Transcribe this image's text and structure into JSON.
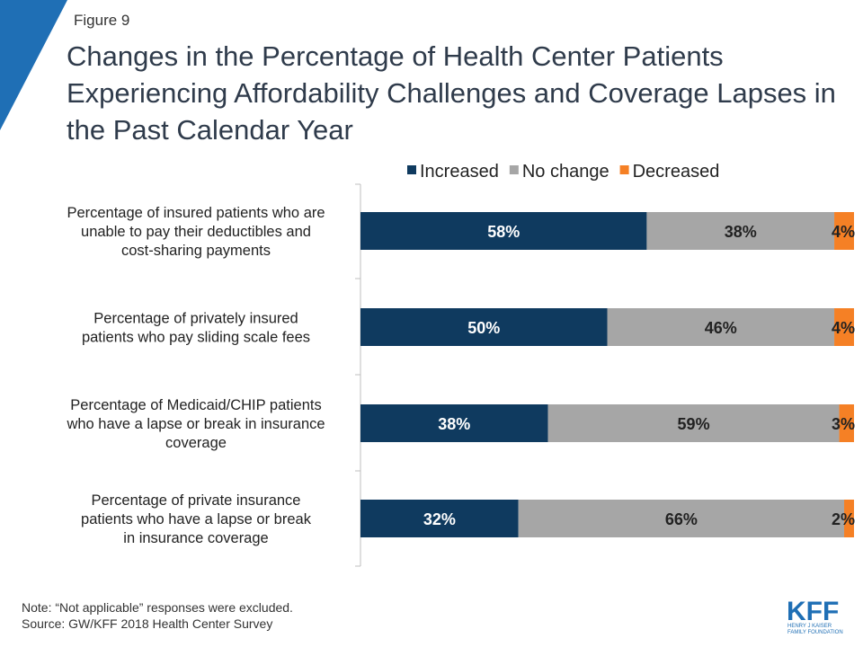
{
  "figure_label": "Figure 9",
  "note": "Note: “Not applicable” responses were excluded.",
  "source": "Source: GW/KFF 2018 Health Center Survey",
  "logo": {
    "mark": "KFF",
    "line1": "HENRY J KAISER",
    "line2": "FAMILY FOUNDATION"
  },
  "colors": {
    "increased": "#0f3a5f",
    "no_change": "#a6a6a6",
    "decreased": "#f58025",
    "brand": "#1f6fb5"
  },
  "chart_data": {
    "type": "bar",
    "orientation": "horizontal",
    "stacked": true,
    "title": "Changes in the Percentage of Health Center Patients Experiencing Affordability Challenges and Coverage Lapses in the Past Calendar Year",
    "xlim": [
      0,
      100
    ],
    "legend_position": "top-right",
    "categories": [
      "Percentage of insured patients who are unable to pay their deductibles and cost-sharing payments",
      "Percentage of privately insured patients who pay sliding scale fees",
      "Percentage of Medicaid/CHIP patients who have a lapse or break in insurance coverage",
      "Percentage of private insurance patients who have a lapse or break in insurance coverage"
    ],
    "series": [
      {
        "name": "Increased",
        "values": [
          58,
          50,
          38,
          32
        ],
        "labels": [
          "58%",
          "50%",
          "38%",
          "32%"
        ]
      },
      {
        "name": "No change",
        "values": [
          38,
          46,
          59,
          66
        ],
        "labels": [
          "38%",
          "46%",
          "59%",
          "66%"
        ]
      },
      {
        "name": "Decreased",
        "values": [
          4,
          4,
          3,
          2
        ],
        "labels": [
          "4%",
          "4%",
          "3%",
          "2%"
        ]
      }
    ]
  }
}
